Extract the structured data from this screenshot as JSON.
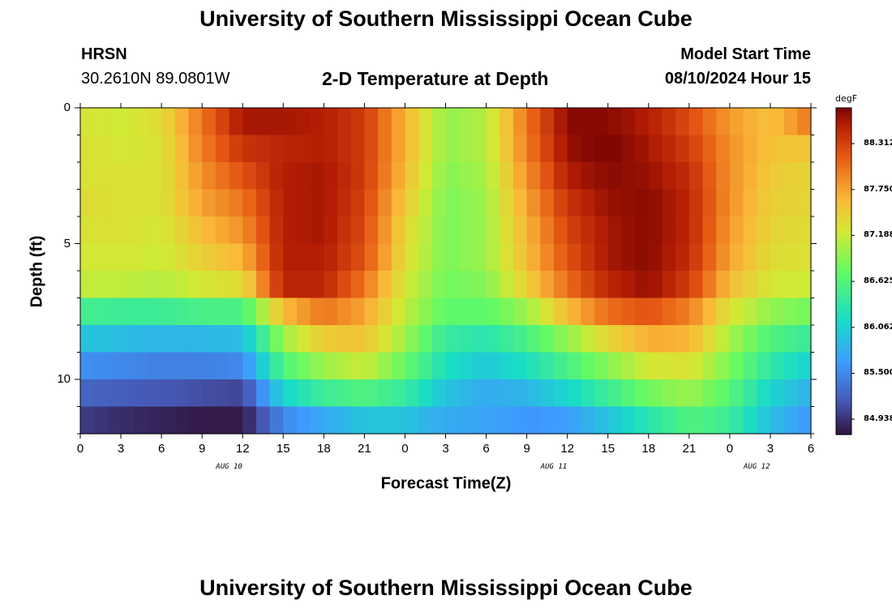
{
  "page": {
    "title": "University of Southern Mississippi Ocean Cube",
    "bottom_title": "University of Southern Mississippi Ocean Cube",
    "station": "HRSN",
    "coords": "30.2610N  89.0801W",
    "plot_title": "2-D Temperature at Depth",
    "model_start_label": "Model Start Time",
    "model_start_value": "08/10/2024 Hour 15"
  },
  "chart_data": {
    "type": "heatmap",
    "title": "2-D Temperature at Depth",
    "xlabel": "Forecast Time(Z)",
    "ylabel": "Depth (ft)",
    "x_ticks": [
      "0",
      "3",
      "6",
      "9",
      "12",
      "15",
      "18",
      "21",
      "0",
      "3",
      "6",
      "9",
      "12",
      "15",
      "18",
      "21",
      "0",
      "3",
      "6"
    ],
    "x_range_hours": [
      0,
      54
    ],
    "date_labels": [
      {
        "label": "AUG 10",
        "hour": 11
      },
      {
        "label": "AUG 11",
        "hour": 35
      },
      {
        "label": "AUG 12",
        "hour": 50
      }
    ],
    "y_ticks": [
      "0",
      "5",
      "10"
    ],
    "ylim": [
      0,
      12
    ],
    "depth_rows_ft": [
      0.5,
      1.5,
      2.5,
      3.5,
      4.5,
      5.5,
      6.5,
      7.5,
      8.5,
      9.5,
      10.5,
      11.5
    ],
    "colorbar": {
      "unit": "degF",
      "range": [
        84.75,
        88.75
      ],
      "ticks": [
        "88.312",
        "87.750",
        "87.188",
        "86.625",
        "86.062",
        "85.500",
        "84.938"
      ]
    },
    "series": [
      {
        "name": "t=0",
        "values": [
          87.3,
          87.3,
          87.3,
          87.35,
          87.3,
          87.25,
          87.15,
          86.5,
          85.95,
          85.55,
          85.25,
          85.0
        ]
      },
      {
        "name": "t=3",
        "values": [
          87.2,
          87.25,
          87.3,
          87.3,
          87.3,
          87.25,
          87.15,
          86.45,
          85.9,
          85.5,
          85.2,
          84.9
        ]
      },
      {
        "name": "t=6",
        "values": [
          87.35,
          87.3,
          87.3,
          87.3,
          87.25,
          87.2,
          87.1,
          86.45,
          85.85,
          85.45,
          85.15,
          84.85
        ]
      },
      {
        "name": "t=9",
        "values": [
          88.0,
          87.95,
          87.85,
          87.75,
          87.6,
          87.45,
          87.25,
          86.55,
          85.85,
          85.45,
          85.1,
          84.8
        ]
      },
      {
        "name": "t=12",
        "values": [
          88.6,
          88.4,
          88.2,
          88.0,
          87.85,
          87.65,
          87.35,
          86.55,
          85.9,
          85.5,
          85.05,
          84.8
        ]
      },
      {
        "name": "t=15",
        "values": [
          88.6,
          88.5,
          88.55,
          88.55,
          88.55,
          88.55,
          88.5,
          87.6,
          87.0,
          86.6,
          86.1,
          85.5
        ]
      },
      {
        "name": "t=18",
        "values": [
          88.55,
          88.55,
          88.6,
          88.6,
          88.6,
          88.55,
          88.5,
          88.0,
          87.5,
          87.0,
          86.45,
          85.75
        ]
      },
      {
        "name": "t=21",
        "values": [
          88.35,
          88.35,
          88.35,
          88.3,
          88.25,
          88.2,
          88.0,
          87.75,
          87.55,
          87.2,
          86.6,
          85.95
        ]
      },
      {
        "name": "t=24",
        "values": [
          87.65,
          87.65,
          87.6,
          87.5,
          87.4,
          87.35,
          87.25,
          87.15,
          87.0,
          86.75,
          86.4,
          85.95
        ]
      },
      {
        "name": "t=27",
        "values": [
          86.95,
          86.95,
          86.9,
          86.85,
          86.85,
          86.85,
          86.8,
          86.7,
          86.4,
          86.2,
          85.95,
          85.75
        ]
      },
      {
        "name": "t=30",
        "values": [
          87.1,
          87.1,
          87.05,
          87.0,
          87.0,
          87.0,
          86.9,
          86.7,
          86.3,
          86.0,
          85.75,
          85.7
        ]
      },
      {
        "name": "t=33",
        "values": [
          88.0,
          87.95,
          87.85,
          87.75,
          87.65,
          87.6,
          87.45,
          87.0,
          86.55,
          86.2,
          85.85,
          85.6
        ]
      },
      {
        "name": "t=36",
        "values": [
          88.7,
          88.65,
          88.55,
          88.4,
          88.3,
          88.2,
          88.05,
          87.6,
          86.95,
          86.55,
          86.1,
          85.65
        ]
      },
      {
        "name": "t=39",
        "values": [
          88.7,
          88.75,
          88.7,
          88.65,
          88.6,
          88.6,
          88.5,
          88.05,
          87.4,
          86.9,
          86.45,
          85.95
        ]
      },
      {
        "name": "t=42",
        "values": [
          88.55,
          88.6,
          88.65,
          88.7,
          88.7,
          88.7,
          88.65,
          88.2,
          87.7,
          87.25,
          86.8,
          86.3
        ]
      },
      {
        "name": "t=45",
        "values": [
          88.25,
          88.35,
          88.45,
          88.5,
          88.5,
          88.45,
          88.35,
          87.95,
          87.65,
          87.3,
          87.0,
          86.6
        ]
      },
      {
        "name": "t=48",
        "values": [
          87.8,
          87.85,
          87.85,
          87.85,
          87.8,
          87.75,
          87.6,
          87.3,
          87.05,
          86.85,
          86.65,
          86.45
        ]
      },
      {
        "name": "t=51",
        "values": [
          87.55,
          87.55,
          87.5,
          87.45,
          87.4,
          87.35,
          87.25,
          86.95,
          86.6,
          86.35,
          86.1,
          85.9
        ]
      },
      {
        "name": "t=54",
        "values": [
          88.0,
          87.55,
          87.4,
          87.4,
          87.35,
          87.3,
          87.2,
          86.8,
          86.4,
          86.05,
          85.8,
          85.6
        ]
      }
    ]
  }
}
